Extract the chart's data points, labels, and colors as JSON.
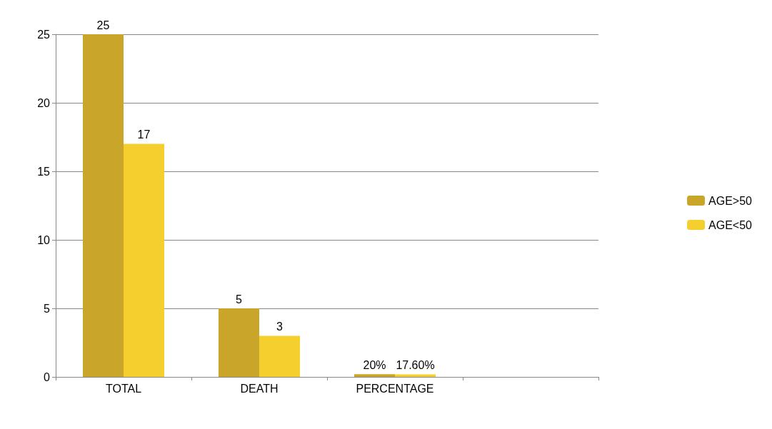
{
  "chart_data": {
    "type": "bar",
    "categories": [
      "TOTAL",
      "DEATH",
      "PERCENTAGE",
      null
    ],
    "series": [
      {
        "name": "AGE>50",
        "color": "#c9a52a",
        "values": [
          25,
          5,
          0.2,
          null
        ],
        "value_labels": [
          "25",
          "5",
          "20%",
          null
        ]
      },
      {
        "name": "AGE<50",
        "color": "#f5cf2e",
        "values": [
          17,
          3,
          0.176,
          null
        ],
        "value_labels": [
          "17",
          "3",
          "17.60%",
          null
        ]
      }
    ],
    "ylim": [
      0,
      25
    ],
    "yticks": [
      0,
      5,
      10,
      15,
      20,
      25
    ],
    "grid": "y",
    "legend": "right"
  }
}
